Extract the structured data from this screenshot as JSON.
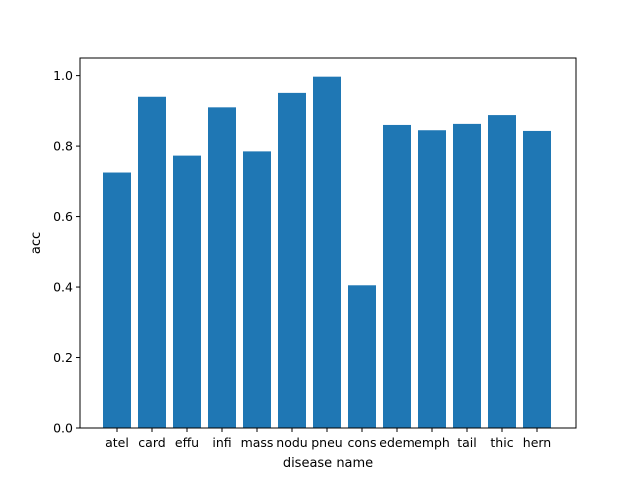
{
  "chart_data": {
    "type": "bar",
    "title": "",
    "xlabel": "disease name",
    "ylabel": "acc",
    "categories": [
      "atel",
      "card",
      "effu",
      "infi",
      "mass",
      "nodu",
      "pneu",
      "cons",
      "edem",
      "emph",
      "tail",
      "thic",
      "hern"
    ],
    "values": [
      0.725,
      0.94,
      0.773,
      0.91,
      0.785,
      0.951,
      0.997,
      0.405,
      0.86,
      0.845,
      0.863,
      0.888,
      0.843
    ],
    "ylim": [
      0,
      1.05
    ],
    "yticks": [
      0.0,
      0.2,
      0.4,
      0.6,
      0.8,
      1.0
    ],
    "ytick_labels": [
      "0.0",
      "0.2",
      "0.4",
      "0.6",
      "0.8",
      "1.0"
    ],
    "bar_color": "#1f77b4",
    "grid": false,
    "legend": "none"
  }
}
